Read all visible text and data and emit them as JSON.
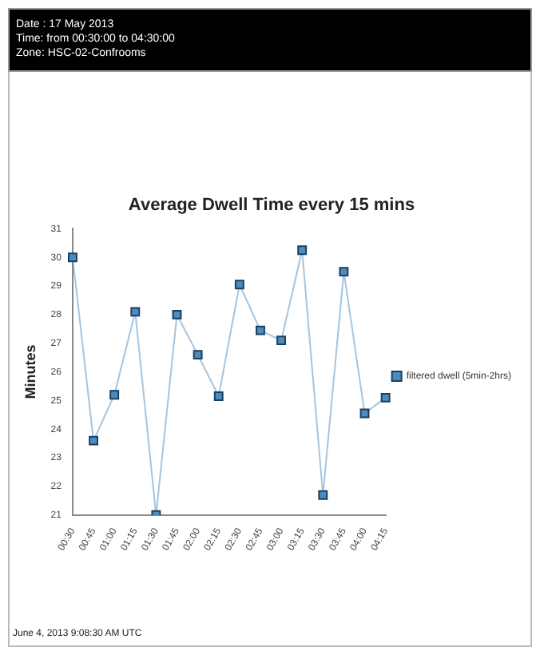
{
  "chart_data": {
    "type": "line",
    "title": "Average Dwell Time every 15 mins",
    "ylabel": "Minutes",
    "annotations": [
      "Date : 17 May 2013",
      "Time: from 00:30:00 to 04:30:00",
      "Zone: HSC-02-Confrooms",
      "June 4, 2013 9:08:30 AM UTC"
    ],
    "categories": [
      "00:30",
      "00:45",
      "01:00",
      "01:15",
      "01:30",
      "01:45",
      "02:00",
      "02:15",
      "02:30",
      "02:45",
      "03:00",
      "03:15",
      "03:30",
      "03:45",
      "04:00",
      "04:15"
    ],
    "series": [
      {
        "name": "filtered dwell (5min-2hrs)",
        "color": "#4a8cc2",
        "values": [
          30.0,
          23.6,
          25.2,
          28.1,
          21.0,
          28.0,
          26.6,
          25.15,
          29.05,
          27.45,
          27.1,
          30.25,
          21.7,
          29.5,
          24.55,
          25.1
        ]
      }
    ],
    "ylim": [
      21,
      31
    ],
    "yticks": [
      21,
      22,
      23,
      24,
      25,
      26,
      27,
      28,
      29,
      30,
      31
    ],
    "grid": false,
    "legend": "right",
    "marker": "square",
    "line_style": "solid"
  }
}
